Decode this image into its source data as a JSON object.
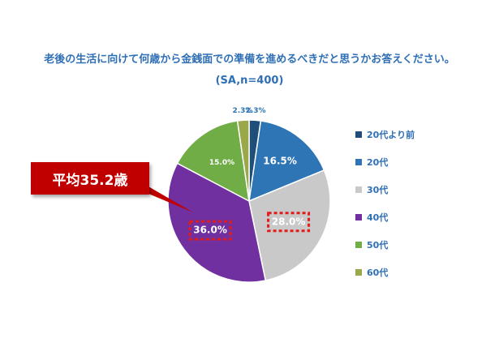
{
  "chart_data": {
    "type": "pie",
    "title": "老後の生活に向けて何歳から金銭面での準備を進めるべきだと思うかお答えください。",
    "subtitle": "(SA,n=400)",
    "categories": [
      "20代より前",
      "20代",
      "30代",
      "40代",
      "50代",
      "60代"
    ],
    "values": [
      2.3,
      16.5,
      28.0,
      36.0,
      15.0,
      2.3
    ],
    "labels": [
      "2.3%",
      "16.5%",
      "28.0%",
      "36.0%",
      "15.0%",
      "2.3%"
    ],
    "colors": [
      "#1f4e79",
      "#2e75b6",
      "#c9c9c9",
      "#7030a0",
      "#70ad47",
      "#9aa84a"
    ],
    "legend_position": "right",
    "highlighted": [
      "30代",
      "40代"
    ],
    "annotation": "平均35.2歳"
  }
}
